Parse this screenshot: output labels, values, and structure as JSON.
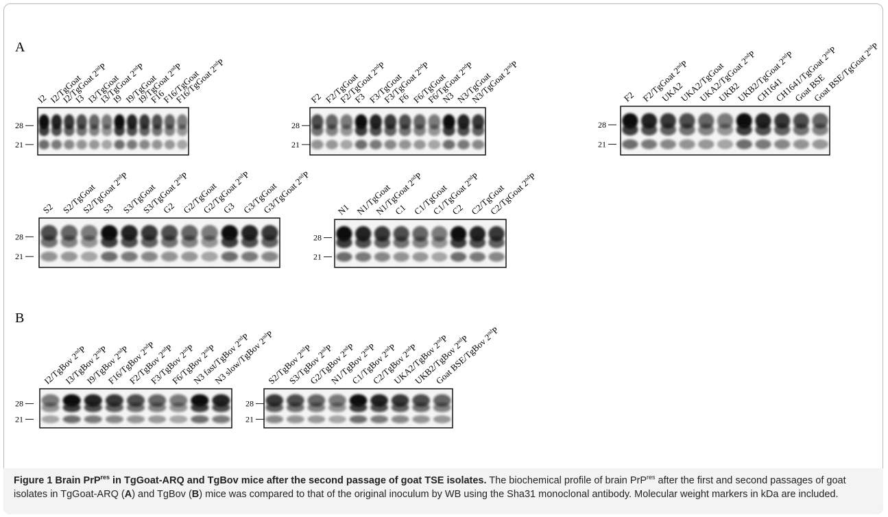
{
  "panels": [
    {
      "label": "A",
      "blots": [
        {
          "markers": [
            "28",
            "21"
          ],
          "lanes": [
            "I2",
            "I2/TgGoat",
            "I2/TgGoat 2ndP",
            "I3",
            "I3/TgGoat",
            "I3/TgGoat 2ndP",
            "I9",
            "I9/TgGoat",
            "I9/TgGoat 2ndP",
            "F16",
            "F16/TgGoat",
            "F16/TgGoat 2ndP"
          ]
        },
        {
          "markers": [
            "28",
            "21"
          ],
          "lanes": [
            "F2",
            "F2/TgGoat",
            "F2/TgGoat 2ndP",
            "F3",
            "F3/TgGoat",
            "F3/TgGoat 2ndP",
            "F6",
            "F6/TgGoat",
            "F6/TgGoat 2ndP",
            "N3",
            "N3/TgGoat",
            "N3/TgGoat 2ndP"
          ]
        },
        {
          "markers": [
            "28",
            "21"
          ],
          "lanes": [
            "F2",
            "F2/TgGoat 2ndP",
            "UKA2",
            "UKA2/TgGoat",
            "UKA2/TgGoat 2ndP",
            "UKB2",
            "UKB2/TgGoat 2ndP",
            "CH1641",
            "CH1641/TgGoat 2ndP",
            "Goat BSE",
            "Goat BSE/TgGoat 2ndP"
          ]
        },
        {
          "markers": [
            "28",
            "21"
          ],
          "lanes": [
            "S2",
            "S2/TgGoat",
            "S2/TgGoat 2ndP",
            "S3",
            "S3/TgGoat",
            "S3/TgGoat 2ndP",
            "G2",
            "G2/TgGoat",
            "G2/TgGoat 2ndP",
            "G3",
            "G3/TgGoat",
            "G3/TgGoat 2ndP"
          ]
        },
        {
          "markers": [
            "28",
            "21"
          ],
          "lanes": [
            "N1",
            "N1/TgGoat",
            "N1/TgGoat 2ndP",
            "C1",
            "C1/TgGoat",
            "C1/TgGoat 2ndP",
            "C2",
            "C2/TgGoat",
            "C2/TgGoat 2ndP"
          ]
        }
      ]
    },
    {
      "label": "B",
      "blots": [
        {
          "markers": [
            "28",
            "21"
          ],
          "lanes": [
            "I2/TgBov 2ndP",
            "I3/TgBov 2ndP",
            "I9/TgBov 2ndP",
            "F16/TgBov 2ndP",
            "F2/TgBov 2ndP",
            "F3/TgBov 2ndP",
            "F6/TgBov 2ndP",
            "N3 fast/TgBov 2ndP",
            "N3 slow/TgBov 2ndP"
          ]
        },
        {
          "markers": [
            "28",
            "21"
          ],
          "lanes": [
            "S2/TgBov 2ndP",
            "S3/TgBov 2ndP",
            "G2/TgBov 2ndP",
            "N1/TgBov 2ndP",
            "C1/TgBov 2ndP",
            "C2/TgBov 2ndP",
            "UKA2/TgBov 2ndP",
            "UKB2/TgBov 2ndP",
            "Goat BSE/TgBov 2ndP"
          ]
        }
      ]
    }
  ],
  "caption": {
    "runs": [
      {
        "text": "Figure 1  Brain PrP",
        "bold": true
      },
      {
        "text": "res",
        "bold": true,
        "sup": true
      },
      {
        "text": " in TgGoat-ARQ and TgBov mice after the second passage of goat TSE isolates.",
        "bold": true
      },
      {
        "text": " The biochemical profile of brain PrP"
      },
      {
        "text": "res",
        "sup": true
      },
      {
        "text": " after the first and second passages of goat isolates in TgGoat-ARQ ("
      },
      {
        "text": "A",
        "bold": true
      },
      {
        "text": ") and TgBov ("
      },
      {
        "text": "B",
        "bold": true
      },
      {
        "text": ") mice was compared to that of the original inoculum by WB using the Sha31 monoclonal antibody. Molecular weight markers in kDa are included."
      }
    ]
  }
}
